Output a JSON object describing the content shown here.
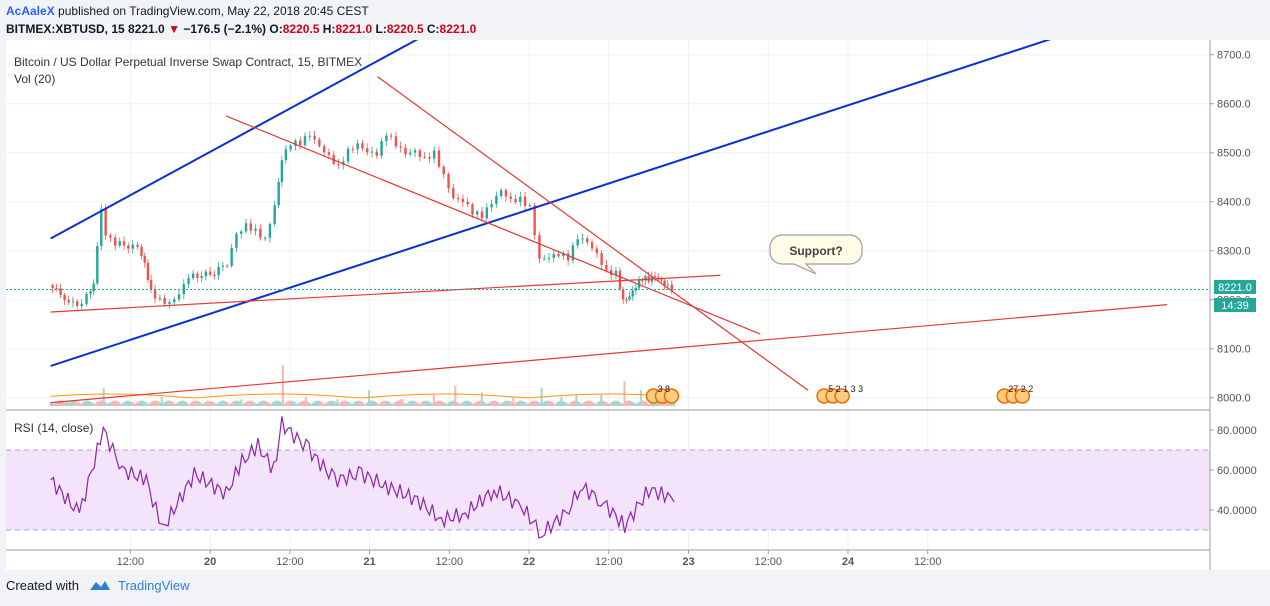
{
  "header": {
    "author": "AcAaleX",
    "published": "published on TradingView.com, May 22, 2018 20:45 CEST",
    "symbol_line": "BITMEX:XBTUSD, 15",
    "last": "8221.0",
    "change_arrow": "▼",
    "change": "−176.5 (−2.1%)",
    "o_label": "O:",
    "o_value": "8220.5",
    "h_label": "H:",
    "h_value": "8221.0",
    "l_label": "L:",
    "l_value": "8220.5",
    "c_label": "C:",
    "c_value": "8221.0"
  },
  "chart": {
    "title": "Bitcoin / US Dollar Perpetual Inverse Swap Contract, 15, BITMEX",
    "vol_label": "Vol (20)",
    "rsi_label": "RSI (14, close)",
    "annotation": "Support?",
    "price_label": "8221.0",
    "countdown_label": "14:39",
    "event_markers": [
      {
        "day": 22.78,
        "text": "3  8"
      },
      {
        "day": 23.85,
        "text": "5 2 1 3 3"
      },
      {
        "day": 24.98,
        "text": "27  2 2"
      }
    ]
  },
  "colors": {
    "up": "#26a69a",
    "down": "#ef5350",
    "channel_blue": "#0b2fd6",
    "channel_red": "#e53935",
    "rsi_line": "#8e24aa",
    "rsi_band": "#f3e3fb"
  },
  "chart_data": {
    "type": "candlestick",
    "symbol": "BITMEX:XBTUSD",
    "interval": "15",
    "x_ticks": [
      "12:00",
      "20",
      "12:00",
      "21",
      "12:00",
      "22",
      "12:00",
      "23",
      "12:00",
      "24",
      "12:00"
    ],
    "price_ticks": [
      "8000.0",
      "8100.0",
      "8200.0",
      "8300.0",
      "8400.0",
      "8500.0",
      "8600.0",
      "8700.0"
    ],
    "rsi_ticks": [
      "40.0000",
      "60.0000",
      "80.0000"
    ],
    "rsi_bands": [
      30,
      70
    ],
    "ylim": [
      7975,
      8730
    ],
    "rsi_ylim": [
      20,
      90
    ],
    "price_path": [
      {
        "day": 19.0,
        "price": 8230
      },
      {
        "day": 19.1,
        "price": 8205
      },
      {
        "day": 19.18,
        "price": 8185
      },
      {
        "day": 19.24,
        "price": 8210
      },
      {
        "day": 19.28,
        "price": 8235
      },
      {
        "day": 19.33,
        "price": 8390
      },
      {
        "day": 19.36,
        "price": 8330
      },
      {
        "day": 19.42,
        "price": 8315
      },
      {
        "day": 19.5,
        "price": 8310
      },
      {
        "day": 19.56,
        "price": 8305
      },
      {
        "day": 19.6,
        "price": 8270
      },
      {
        "day": 19.64,
        "price": 8215
      },
      {
        "day": 19.7,
        "price": 8200
      },
      {
        "day": 19.76,
        "price": 8195
      },
      {
        "day": 19.82,
        "price": 8215
      },
      {
        "day": 19.88,
        "price": 8250
      },
      {
        "day": 19.96,
        "price": 8250
      },
      {
        "day": 20.04,
        "price": 8255
      },
      {
        "day": 20.12,
        "price": 8275
      },
      {
        "day": 20.18,
        "price": 8330
      },
      {
        "day": 20.24,
        "price": 8350
      },
      {
        "day": 20.3,
        "price": 8340
      },
      {
        "day": 20.36,
        "price": 8325
      },
      {
        "day": 20.42,
        "price": 8395
      },
      {
        "day": 20.46,
        "price": 8490
      },
      {
        "day": 20.52,
        "price": 8520
      },
      {
        "day": 20.58,
        "price": 8520
      },
      {
        "day": 20.64,
        "price": 8535
      },
      {
        "day": 20.7,
        "price": 8510
      },
      {
        "day": 20.76,
        "price": 8490
      },
      {
        "day": 20.82,
        "price": 8470
      },
      {
        "day": 20.88,
        "price": 8505
      },
      {
        "day": 20.94,
        "price": 8520
      },
      {
        "day": 21.0,
        "price": 8505
      },
      {
        "day": 21.06,
        "price": 8500
      },
      {
        "day": 21.12,
        "price": 8540
      },
      {
        "day": 21.18,
        "price": 8515
      },
      {
        "day": 21.24,
        "price": 8495
      },
      {
        "day": 21.3,
        "price": 8500
      },
      {
        "day": 21.36,
        "price": 8485
      },
      {
        "day": 21.42,
        "price": 8500
      },
      {
        "day": 21.48,
        "price": 8455
      },
      {
        "day": 21.54,
        "price": 8410
      },
      {
        "day": 21.6,
        "price": 8405
      },
      {
        "day": 21.66,
        "price": 8380
      },
      {
        "day": 21.72,
        "price": 8370
      },
      {
        "day": 21.78,
        "price": 8395
      },
      {
        "day": 21.84,
        "price": 8420
      },
      {
        "day": 21.9,
        "price": 8400
      },
      {
        "day": 21.96,
        "price": 8405
      },
      {
        "day": 22.02,
        "price": 8390
      },
      {
        "day": 22.08,
        "price": 8285
      },
      {
        "day": 22.14,
        "price": 8290
      },
      {
        "day": 22.2,
        "price": 8295
      },
      {
        "day": 22.26,
        "price": 8285
      },
      {
        "day": 22.32,
        "price": 8325
      },
      {
        "day": 22.38,
        "price": 8315
      },
      {
        "day": 22.44,
        "price": 8290
      },
      {
        "day": 22.5,
        "price": 8255
      },
      {
        "day": 22.56,
        "price": 8255
      },
      {
        "day": 22.6,
        "price": 8200
      },
      {
        "day": 22.64,
        "price": 8210
      },
      {
        "day": 22.68,
        "price": 8230
      },
      {
        "day": 22.72,
        "price": 8245
      },
      {
        "day": 22.76,
        "price": 8240
      },
      {
        "day": 22.8,
        "price": 8245
      },
      {
        "day": 22.84,
        "price": 8235
      },
      {
        "day": 22.88,
        "price": 8225
      },
      {
        "day": 22.91,
        "price": 8221
      }
    ],
    "rsi_path": [
      {
        "day": 19.0,
        "rsi": 55
      },
      {
        "day": 19.18,
        "rsi": 38
      },
      {
        "day": 19.33,
        "rsi": 80
      },
      {
        "day": 19.45,
        "rsi": 60
      },
      {
        "day": 19.6,
        "rsi": 55
      },
      {
        "day": 19.7,
        "rsi": 30
      },
      {
        "day": 19.9,
        "rsi": 58
      },
      {
        "day": 20.1,
        "rsi": 48
      },
      {
        "day": 20.2,
        "rsi": 64
      },
      {
        "day": 20.3,
        "rsi": 72
      },
      {
        "day": 20.4,
        "rsi": 60
      },
      {
        "day": 20.45,
        "rsi": 83
      },
      {
        "day": 20.62,
        "rsi": 70
      },
      {
        "day": 20.78,
        "rsi": 55
      },
      {
        "day": 20.95,
        "rsi": 58
      },
      {
        "day": 21.1,
        "rsi": 52
      },
      {
        "day": 21.3,
        "rsi": 45
      },
      {
        "day": 21.45,
        "rsi": 35
      },
      {
        "day": 21.6,
        "rsi": 38
      },
      {
        "day": 21.78,
        "rsi": 50
      },
      {
        "day": 21.95,
        "rsi": 42
      },
      {
        "day": 22.08,
        "rsi": 28
      },
      {
        "day": 22.25,
        "rsi": 40
      },
      {
        "day": 22.32,
        "rsi": 52
      },
      {
        "day": 22.45,
        "rsi": 45
      },
      {
        "day": 22.6,
        "rsi": 32
      },
      {
        "day": 22.75,
        "rsi": 50
      },
      {
        "day": 22.85,
        "rsi": 48
      },
      {
        "day": 22.91,
        "rsi": 44
      }
    ],
    "volume_bars": [
      {
        "day": 19.1,
        "vol": 10,
        "dir": "down"
      },
      {
        "day": 19.33,
        "vol": 40,
        "dir": "up"
      },
      {
        "day": 19.5,
        "vol": 10,
        "dir": "up"
      },
      {
        "day": 19.7,
        "vol": 20,
        "dir": "down"
      },
      {
        "day": 20.0,
        "vol": 10,
        "dir": "up"
      },
      {
        "day": 20.2,
        "vol": 15,
        "dir": "up"
      },
      {
        "day": 20.46,
        "vol": 90,
        "dir": "up"
      },
      {
        "day": 20.6,
        "vol": 20,
        "dir": "down"
      },
      {
        "day": 20.8,
        "vol": 15,
        "dir": "down"
      },
      {
        "day": 21.0,
        "vol": 35,
        "dir": "down"
      },
      {
        "day": 21.2,
        "vol": 15,
        "dir": "up"
      },
      {
        "day": 21.4,
        "vol": 25,
        "dir": "down"
      },
      {
        "day": 21.54,
        "vol": 45,
        "dir": "down"
      },
      {
        "day": 21.7,
        "vol": 30,
        "dir": "down"
      },
      {
        "day": 21.9,
        "vol": 20,
        "dir": "up"
      },
      {
        "day": 22.08,
        "vol": 40,
        "dir": "down"
      },
      {
        "day": 22.2,
        "vol": 20,
        "dir": "up"
      },
      {
        "day": 22.3,
        "vol": 25,
        "dir": "up"
      },
      {
        "day": 22.45,
        "vol": 25,
        "dir": "down"
      },
      {
        "day": 22.6,
        "vol": 55,
        "dir": "down"
      },
      {
        "day": 22.7,
        "vol": 35,
        "dir": "up"
      },
      {
        "day": 22.85,
        "vol": 20,
        "dir": "down"
      }
    ],
    "trendlines": [
      {
        "color": "blue",
        "from": {
          "day": 19.0,
          "price": 8325
        },
        "to": {
          "day": 21.32,
          "price": 8735
        }
      },
      {
        "color": "blue",
        "from": {
          "day": 19.0,
          "price": 8065
        },
        "to": {
          "day": 25.3,
          "price": 8735
        }
      },
      {
        "color": "red",
        "from": {
          "day": 19.0,
          "price": 8175
        },
        "to": {
          "day": 23.2,
          "price": 8250
        }
      },
      {
        "color": "red",
        "from": {
          "day": 19.0,
          "price": 7990
        },
        "to": {
          "day": 26.0,
          "price": 8190
        }
      },
      {
        "color": "red",
        "from": {
          "day": 20.1,
          "price": 8575
        },
        "to": {
          "day": 23.45,
          "price": 8130
        }
      },
      {
        "color": "red",
        "from": {
          "day": 21.05,
          "price": 8655
        },
        "to": {
          "day": 23.75,
          "price": 8015
        }
      }
    ]
  }
}
